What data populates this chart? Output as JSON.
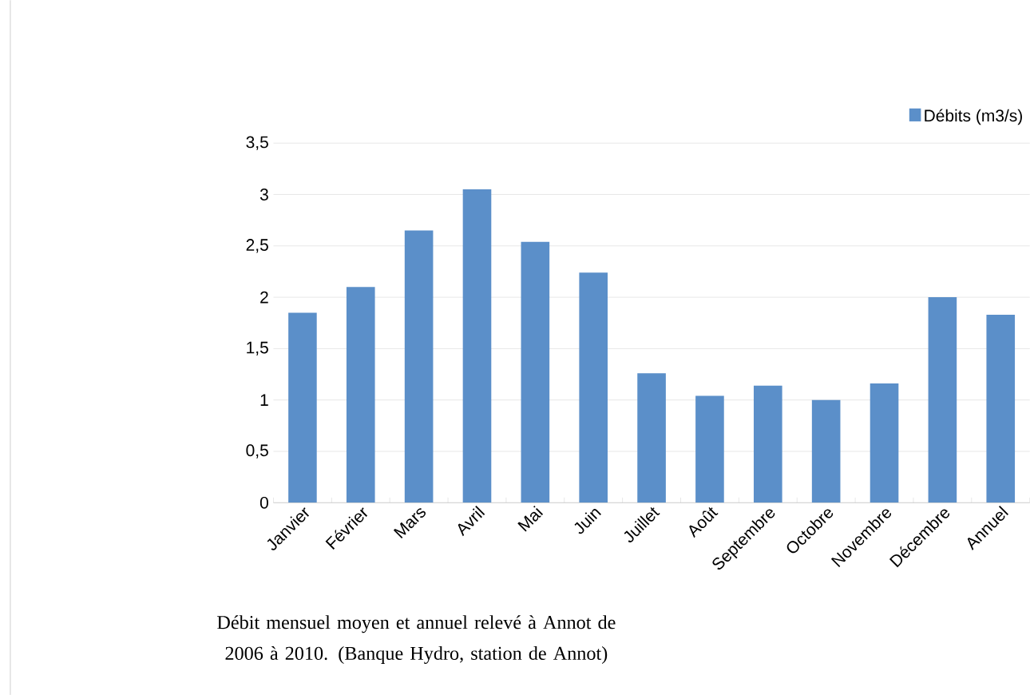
{
  "chart_data": {
    "type": "bar",
    "categories": [
      "Janvier",
      "Février",
      "Mars",
      "Avril",
      "Mai",
      "Juin",
      "Juillet",
      "Août",
      "Septembre",
      "Octobre",
      "Novembre",
      "Décembre",
      "Annuel"
    ],
    "series": [
      {
        "name": "Débits (m3/s)",
        "color": "#5b8fc9",
        "values": [
          1.85,
          2.1,
          2.65,
          3.05,
          2.54,
          2.24,
          1.26,
          1.04,
          1.14,
          1.0,
          1.16,
          2.0,
          1.83
        ]
      }
    ],
    "ylim": [
      0,
      3.5
    ],
    "yticks": [
      0,
      {
        "value": 0.5,
        "label": "0,5"
      },
      1,
      {
        "value": 1.5,
        "label": "1,5"
      },
      2,
      {
        "value": 2.5,
        "label": "2,5"
      },
      3,
      {
        "value": 3.5,
        "label": "3,5"
      }
    ],
    "grid": "y",
    "legend": "top right",
    "annotations": [
      "Débit mensuel moyen et annuel relevé à Annot de 2006 à 2010. (Banque Hydro, station de Annot)"
    ]
  }
}
